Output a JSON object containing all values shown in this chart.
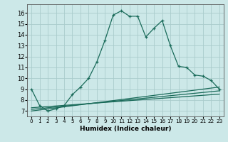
{
  "xlabel": "Humidex (Indice chaleur)",
  "ylabel": "",
  "xlim": [
    -0.5,
    23.5
  ],
  "ylim": [
    6.5,
    16.8
  ],
  "xticks": [
    0,
    1,
    2,
    3,
    4,
    5,
    6,
    7,
    8,
    9,
    10,
    11,
    12,
    13,
    14,
    15,
    16,
    17,
    18,
    19,
    20,
    21,
    22,
    23
  ],
  "yticks": [
    7,
    8,
    9,
    10,
    11,
    12,
    13,
    14,
    15,
    16
  ],
  "background_color": "#cce8e8",
  "grid_color": "#aacccc",
  "line_color": "#1a6b5a",
  "series_main": {
    "x": [
      0,
      1,
      2,
      3,
      4,
      5,
      6,
      7,
      8,
      9,
      10,
      11,
      12,
      13,
      14,
      15,
      16,
      17,
      18,
      19,
      20,
      21,
      22,
      23
    ],
    "y": [
      9.0,
      7.5,
      7.0,
      7.2,
      7.5,
      8.5,
      9.2,
      10.0,
      11.5,
      13.5,
      15.8,
      16.2,
      15.7,
      15.7,
      13.8,
      14.6,
      15.3,
      13.0,
      11.1,
      11.0,
      10.3,
      10.2,
      9.8,
      9.0
    ]
  },
  "trend_lines": [
    {
      "x": [
        0,
        23
      ],
      "y": [
        7.0,
        9.2
      ]
    },
    {
      "x": [
        0,
        23
      ],
      "y": [
        7.15,
        8.85
      ]
    },
    {
      "x": [
        0,
        23
      ],
      "y": [
        7.3,
        8.55
      ]
    }
  ]
}
